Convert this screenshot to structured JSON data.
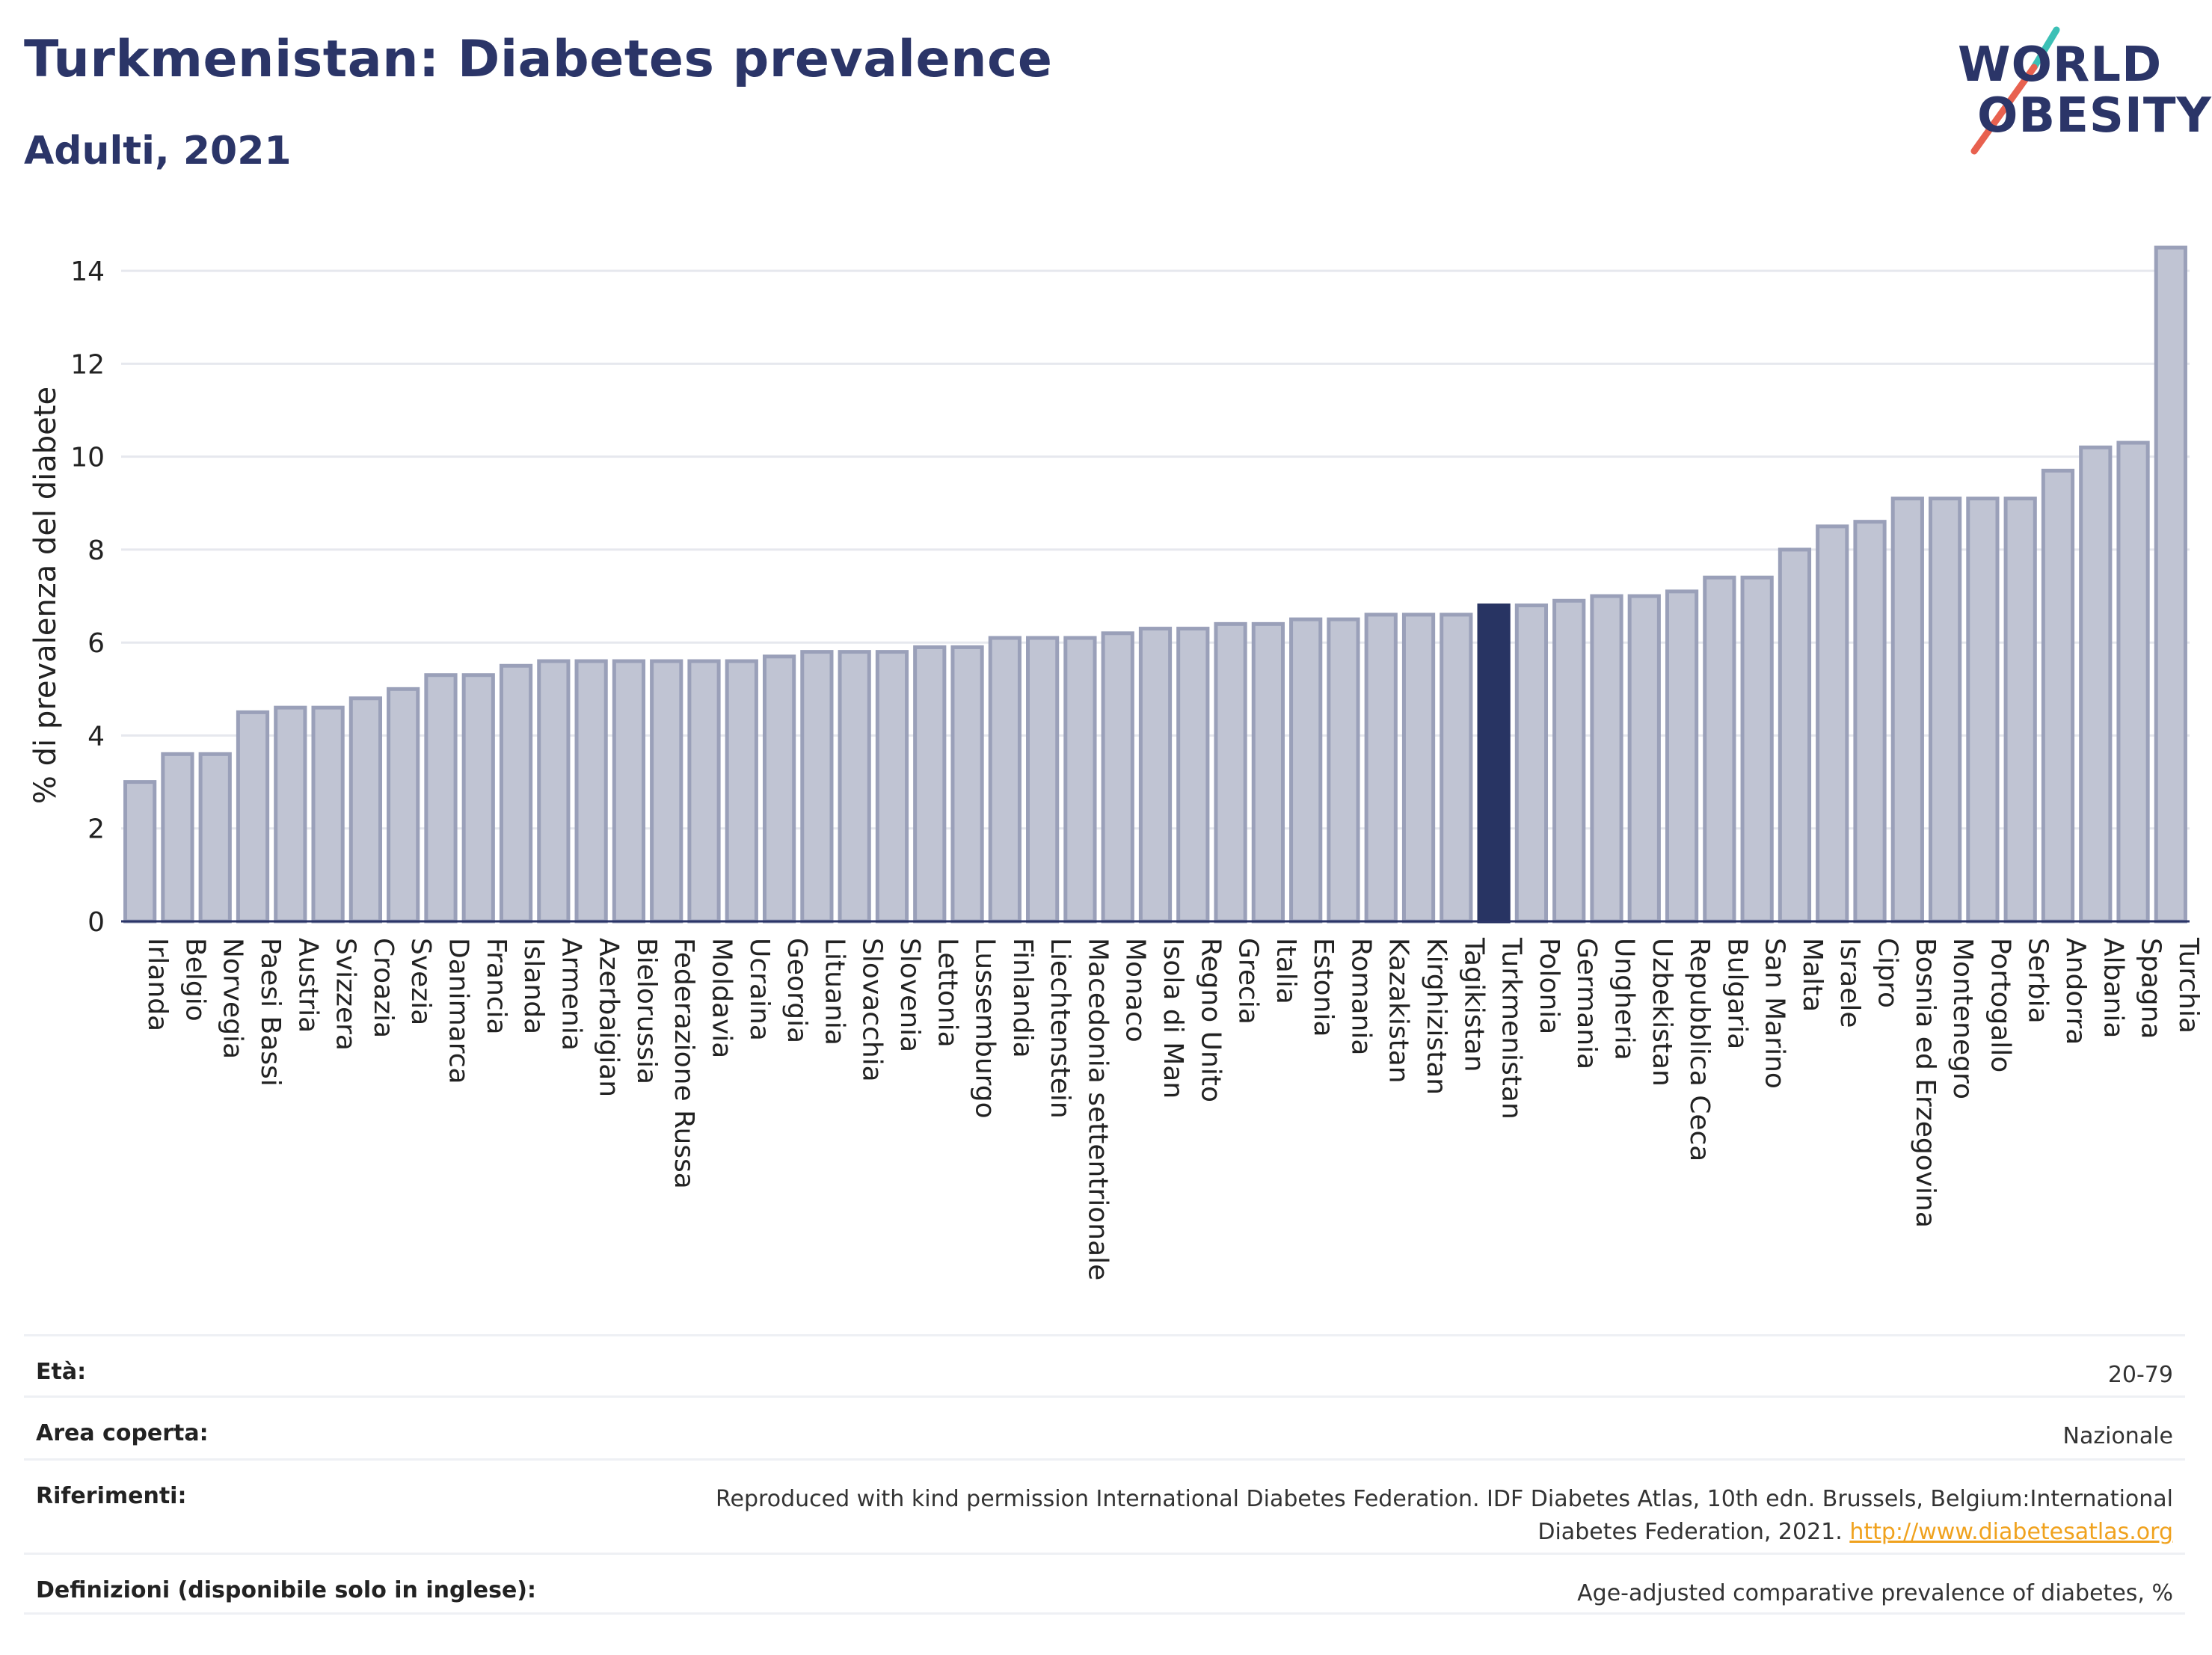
{
  "header": {
    "title": "Turkmenistan: Diabetes prevalence",
    "subtitle": "Adulti, 2021"
  },
  "logo": {
    "line1": "WORLD",
    "line2": "OBESITY",
    "colors": {
      "text": "#2b3568",
      "accent_red": "#e8614f",
      "accent_teal": "#3cc0b6"
    }
  },
  "colors": {
    "bar_default": "#c0c4d3",
    "bar_default_stroke": "#9aa0b9",
    "bar_highlight": "#283463",
    "grid": "#e6e8ee",
    "axis_text": "#222222"
  },
  "chart_data": {
    "type": "bar",
    "title": "",
    "xlabel": "",
    "ylabel": "% di prevalenza del diabete",
    "ylim": [
      0,
      15
    ],
    "yticks": [
      0,
      2,
      4,
      6,
      8,
      10,
      12,
      14
    ],
    "grid": true,
    "highlight": "Turkmenistan",
    "categories": [
      "Irlanda",
      "Belgio",
      "Norvegia",
      "Paesi Bassi",
      "Austria",
      "Svizzera",
      "Croazia",
      "Svezia",
      "Danimarca",
      "Francia",
      "Islanda",
      "Armenia",
      "Azerbaigian",
      "Bielorussia",
      "Federazione Russa",
      "Moldavia",
      "Ucraina",
      "Georgia",
      "Lituania",
      "Slovacchia",
      "Slovenia",
      "Lettonia",
      "Lussemburgo",
      "Finlandia",
      "Liechtenstein",
      "Macedonia settentrionale",
      "Monaco",
      "Isola di Man",
      "Regno Unito",
      "Grecia",
      "Italia",
      "Estonia",
      "Romania",
      "Kazakistan",
      "Kirghizistan",
      "Tagikistan",
      "Turkmenistan",
      "Polonia",
      "Germania",
      "Ungheria",
      "Uzbekistan",
      "Repubblica Ceca",
      "Bulgaria",
      "San Marino",
      "Malta",
      "Israele",
      "Cipro",
      "Bosnia ed Erzegovina",
      "Montenegro",
      "Portogallo",
      "Serbia",
      "Andorra",
      "Albania",
      "Spagna",
      "Turchia"
    ],
    "values": [
      3.0,
      3.6,
      3.6,
      4.5,
      4.6,
      4.6,
      4.8,
      5.0,
      5.3,
      5.3,
      5.5,
      5.6,
      5.6,
      5.6,
      5.6,
      5.6,
      5.6,
      5.7,
      5.8,
      5.8,
      5.8,
      5.9,
      5.9,
      6.1,
      6.1,
      6.1,
      6.2,
      6.3,
      6.3,
      6.4,
      6.4,
      6.5,
      6.5,
      6.6,
      6.6,
      6.6,
      6.8,
      6.8,
      6.9,
      7.0,
      7.0,
      7.1,
      7.4,
      7.4,
      8.0,
      8.5,
      8.6,
      9.1,
      9.1,
      9.1,
      9.1,
      9.7,
      10.2,
      10.3,
      14.5
    ]
  },
  "info": {
    "rows": [
      {
        "label": "Età:",
        "value": "20-79"
      },
      {
        "label": "Area coperta:",
        "value": "Nazionale"
      },
      {
        "label": "Riferimenti:",
        "value_line1": "Reproduced with kind permission International Diabetes Federation.  IDF Diabetes Atlas, 10th edn. Brussels, Belgium:International",
        "value_line2": "Diabetes Federation, 2021.",
        "link": "http://www.diabetesatlas.org"
      },
      {
        "label": "Definizioni (disponibile solo in inglese):",
        "value": "Age-adjusted comparative prevalence of diabetes, %"
      }
    ]
  }
}
